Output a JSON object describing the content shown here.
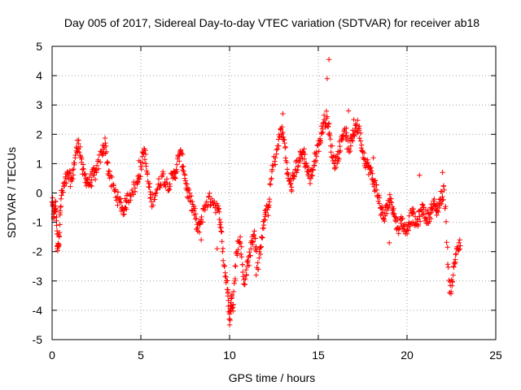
{
  "chart_data": {
    "type": "scatter",
    "title": "Day 005 of 2017, Sidereal Day-to-day VTEC variation (SDTVAR) for receiver ab18",
    "xlabel": "GPS time / hours",
    "ylabel": "SDTVAR / TECUs",
    "xlim": [
      0,
      25
    ],
    "ylim": [
      -5,
      5
    ],
    "xticks": [
      0,
      5,
      10,
      15,
      20,
      25
    ],
    "yticks": [
      -5,
      -4,
      -3,
      -2,
      -1,
      0,
      1,
      2,
      3,
      4,
      5
    ],
    "grid": true,
    "marker": "+",
    "marker_color": "#ff0000",
    "series": [
      {
        "name": "SDTVAR",
        "trend": [
          [
            0.0,
            -0.3
          ],
          [
            0.1,
            -0.8
          ],
          [
            0.2,
            -0.3
          ],
          [
            0.3,
            -1.8
          ],
          [
            0.4,
            -1.5
          ],
          [
            0.5,
            -0.2
          ],
          [
            0.7,
            0.3
          ],
          [
            0.9,
            0.6
          ],
          [
            1.1,
            0.4
          ],
          [
            1.3,
            1.2
          ],
          [
            1.5,
            1.8
          ],
          [
            1.7,
            0.8
          ],
          [
            1.9,
            0.5
          ],
          [
            2.1,
            0.3
          ],
          [
            2.3,
            0.6
          ],
          [
            2.5,
            0.7
          ],
          [
            2.8,
            1.4
          ],
          [
            3.0,
            1.7
          ],
          [
            3.2,
            0.6
          ],
          [
            3.5,
            0.1
          ],
          [
            3.8,
            -0.3
          ],
          [
            4.0,
            -0.6
          ],
          [
            4.2,
            -0.3
          ],
          [
            4.5,
            0.1
          ],
          [
            4.8,
            0.3
          ],
          [
            5.0,
            0.9
          ],
          [
            5.2,
            1.5
          ],
          [
            5.4,
            0.4
          ],
          [
            5.6,
            -0.3
          ],
          [
            5.9,
            0.1
          ],
          [
            6.2,
            0.6
          ],
          [
            6.5,
            0.3
          ],
          [
            6.8,
            0.5
          ],
          [
            7.0,
            0.8
          ],
          [
            7.2,
            1.4
          ],
          [
            7.4,
            0.9
          ],
          [
            7.6,
            0.1
          ],
          [
            7.8,
            -0.3
          ],
          [
            8.0,
            -0.6
          ],
          [
            8.2,
            -1.3
          ],
          [
            8.4,
            -0.9
          ],
          [
            8.7,
            -0.3
          ],
          [
            9.0,
            -0.2
          ],
          [
            9.3,
            -0.5
          ],
          [
            9.5,
            -1.0
          ],
          [
            9.7,
            -2.5
          ],
          [
            9.9,
            -3.3
          ],
          [
            10.0,
            -4.3
          ],
          [
            10.1,
            -3.6
          ],
          [
            10.2,
            -3.8
          ],
          [
            10.4,
            -2.0
          ],
          [
            10.6,
            -1.5
          ],
          [
            10.8,
            -3.1
          ],
          [
            11.0,
            -2.5
          ],
          [
            11.2,
            -1.9
          ],
          [
            11.4,
            -1.3
          ],
          [
            11.6,
            -2.6
          ],
          [
            11.8,
            -1.5
          ],
          [
            12.0,
            -0.8
          ],
          [
            12.2,
            -0.5
          ],
          [
            12.4,
            0.8
          ],
          [
            12.7,
            1.5
          ],
          [
            12.9,
            2.2
          ],
          [
            13.1,
            1.7
          ],
          [
            13.3,
            0.5
          ],
          [
            13.5,
            0.2
          ],
          [
            13.7,
            0.8
          ],
          [
            13.9,
            1.1
          ],
          [
            14.1,
            1.4
          ],
          [
            14.3,
            1.0
          ],
          [
            14.5,
            0.5
          ],
          [
            14.7,
            0.8
          ],
          [
            14.9,
            1.4
          ],
          [
            15.1,
            1.8
          ],
          [
            15.3,
            2.4
          ],
          [
            15.5,
            2.6
          ],
          [
            15.7,
            1.6
          ],
          [
            15.9,
            1.0
          ],
          [
            16.1,
            1.2
          ],
          [
            16.3,
            1.8
          ],
          [
            16.5,
            2.2
          ],
          [
            16.7,
            1.5
          ],
          [
            16.9,
            1.8
          ],
          [
            17.1,
            2.3
          ],
          [
            17.3,
            2.2
          ],
          [
            17.5,
            1.4
          ],
          [
            17.7,
            1.0
          ],
          [
            17.9,
            0.8
          ],
          [
            18.1,
            0.4
          ],
          [
            18.3,
            0.1
          ],
          [
            18.5,
            -0.5
          ],
          [
            18.7,
            -0.9
          ],
          [
            18.9,
            -0.4
          ],
          [
            19.1,
            -0.2
          ],
          [
            19.3,
            -0.8
          ],
          [
            19.5,
            -1.2
          ],
          [
            19.7,
            -0.9
          ],
          [
            19.9,
            -1.3
          ],
          [
            20.1,
            -1.0
          ],
          [
            20.3,
            -0.7
          ],
          [
            20.5,
            -1.1
          ],
          [
            20.7,
            -0.8
          ],
          [
            20.9,
            -0.5
          ],
          [
            21.1,
            -0.9
          ],
          [
            21.3,
            -0.7
          ],
          [
            21.5,
            -0.4
          ],
          [
            21.7,
            -0.6
          ],
          [
            21.9,
            -0.2
          ],
          [
            22.1,
            0.1
          ],
          [
            22.4,
            -3.4
          ],
          [
            22.6,
            -2.8
          ],
          [
            22.8,
            -1.9
          ],
          [
            23.0,
            -1.8
          ]
        ],
        "outliers": [
          [
            15.6,
            4.55
          ],
          [
            15.5,
            3.9
          ],
          [
            16.7,
            2.8
          ],
          [
            13.0,
            2.7
          ],
          [
            10.0,
            -4.5
          ],
          [
            9.3,
            -1.9
          ],
          [
            12.0,
            -0.6
          ],
          [
            18.1,
            1.2
          ],
          [
            20.7,
            0.6
          ],
          [
            22.0,
            0.7
          ],
          [
            19.0,
            -1.7
          ],
          [
            0.3,
            -1.9
          ],
          [
            8.4,
            -1.6
          ],
          [
            11.5,
            -2.8
          ],
          [
            14.2,
            1.5
          ],
          [
            17.0,
            2.5
          ],
          [
            6.9,
            0.7
          ],
          [
            4.9,
            1.1
          ]
        ]
      }
    ]
  }
}
